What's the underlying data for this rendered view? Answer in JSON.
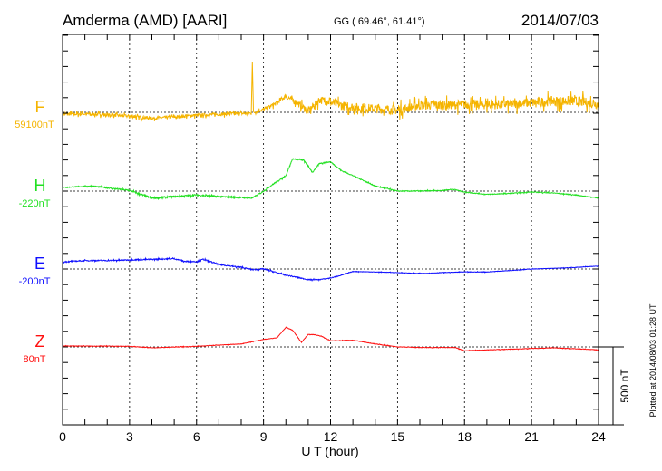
{
  "header": {
    "station": "Amderma (AMD)  [AARI]",
    "coords": "GG ( 69.46°,  61.41°)",
    "date": "2014/07/03"
  },
  "footer": {
    "xlabel": "U T (hour)",
    "plotted": "Plotted at 2014/08/03 01:28 UT",
    "scale_label": "500 nT"
  },
  "colors": {
    "F": "#f5b400",
    "H": "#22e022",
    "E": "#1010ff",
    "Z": "#ff1010",
    "axis": "#000000"
  },
  "chart_data": {
    "type": "line",
    "title": "Amderma (AMD)  [AARI]",
    "xlabel": "U T (hour)",
    "xlim": [
      0,
      24
    ],
    "xticks": [
      "0",
      "3",
      "6",
      "9",
      "12",
      "15",
      "18",
      "21",
      "24"
    ],
    "scale_nT": 500,
    "grid": true,
    "series": [
      {
        "name": "F",
        "baseline_label": "59100nT",
        "noise_nT": [
          [
            0,
            14
          ],
          [
            9,
            14
          ],
          [
            12,
            40
          ],
          [
            24,
            45
          ]
        ],
        "points": [
          [
            0,
            -12
          ],
          [
            1,
            -10
          ],
          [
            2,
            -16
          ],
          [
            3,
            -25
          ],
          [
            4,
            -39
          ],
          [
            5,
            -30
          ],
          [
            6,
            -19
          ],
          [
            7,
            -12
          ],
          [
            8,
            -8
          ],
          [
            8.45,
            -5
          ],
          [
            8.5,
            324
          ],
          [
            8.55,
            -2
          ],
          [
            9,
            19
          ],
          [
            9.5,
            52
          ],
          [
            10,
            105
          ],
          [
            10.5,
            60
          ],
          [
            11,
            8
          ],
          [
            11.5,
            81
          ],
          [
            12,
            66
          ],
          [
            12.5,
            43
          ],
          [
            13,
            33
          ],
          [
            14,
            23
          ],
          [
            15,
            14
          ],
          [
            16,
            45
          ],
          [
            17,
            45
          ],
          [
            18,
            52
          ],
          [
            19,
            48
          ],
          [
            20,
            52
          ],
          [
            21,
            62
          ],
          [
            22,
            72
          ],
          [
            23,
            72
          ],
          [
            24,
            52
          ]
        ]
      },
      {
        "name": "H",
        "baseline_label": "-220nT",
        "noise_nT": [
          [
            0,
            3
          ],
          [
            4,
            8
          ],
          [
            9,
            6
          ],
          [
            12,
            4
          ],
          [
            24,
            3
          ]
        ],
        "points": [
          [
            0,
            23
          ],
          [
            1.3,
            33
          ],
          [
            3,
            4
          ],
          [
            4,
            -45
          ],
          [
            5,
            -35
          ],
          [
            6,
            -25
          ],
          [
            7,
            -35
          ],
          [
            8.5,
            -45
          ],
          [
            9,
            0
          ],
          [
            9.5,
            52
          ],
          [
            10,
            100
          ],
          [
            10.3,
            207
          ],
          [
            10.8,
            198
          ],
          [
            11.2,
            120
          ],
          [
            11.5,
            178
          ],
          [
            12,
            188
          ],
          [
            12.5,
            130
          ],
          [
            13,
            100
          ],
          [
            14,
            33
          ],
          [
            15,
            0
          ],
          [
            16,
            0
          ],
          [
            17,
            4
          ],
          [
            17.5,
            12
          ],
          [
            18,
            -6
          ],
          [
            19,
            -21
          ],
          [
            20,
            -15
          ],
          [
            21,
            -6
          ],
          [
            22,
            -12
          ],
          [
            23,
            -25
          ],
          [
            24,
            -45
          ]
        ]
      },
      {
        "name": "E",
        "baseline_label": "-200nT",
        "noise_nT": [
          [
            0,
            4
          ],
          [
            9,
            6
          ],
          [
            13,
            2
          ],
          [
            24,
            2
          ]
        ],
        "points": [
          [
            0,
            45
          ],
          [
            1,
            54
          ],
          [
            2,
            54
          ],
          [
            3,
            58
          ],
          [
            4,
            62
          ],
          [
            5,
            66
          ],
          [
            5.5,
            48
          ],
          [
            6,
            48
          ],
          [
            6.3,
            62
          ],
          [
            7,
            29
          ],
          [
            8,
            10
          ],
          [
            8.5,
            -4
          ],
          [
            9,
            0
          ],
          [
            10,
            -39
          ],
          [
            11,
            -68
          ],
          [
            11.5,
            -68
          ],
          [
            12,
            -58
          ],
          [
            12.5,
            -39
          ],
          [
            13,
            -16
          ],
          [
            14,
            -19
          ],
          [
            15,
            -23
          ],
          [
            16,
            -29
          ],
          [
            17,
            -23
          ],
          [
            18,
            -19
          ],
          [
            19,
            -19
          ],
          [
            20,
            -10
          ],
          [
            21,
            0
          ],
          [
            22,
            4
          ],
          [
            23,
            10
          ],
          [
            24,
            19
          ]
        ]
      },
      {
        "name": "Z",
        "baseline_label": "80nT",
        "noise_nT": [
          [
            0,
            2
          ],
          [
            24,
            2
          ]
        ],
        "points": [
          [
            0,
            6
          ],
          [
            3,
            4
          ],
          [
            4,
            -6
          ],
          [
            6,
            4
          ],
          [
            8,
            19
          ],
          [
            9,
            48
          ],
          [
            9.6,
            58
          ],
          [
            10,
            126
          ],
          [
            10.3,
            107
          ],
          [
            10.7,
            29
          ],
          [
            11,
            81
          ],
          [
            11.3,
            78
          ],
          [
            11.6,
            68
          ],
          [
            12,
            39
          ],
          [
            13,
            43
          ],
          [
            14,
            19
          ],
          [
            15,
            0
          ],
          [
            16,
            -4
          ],
          [
            17,
            -4
          ],
          [
            17.6,
            -4
          ],
          [
            18,
            -25
          ],
          [
            19,
            -19
          ],
          [
            20,
            -15
          ],
          [
            21,
            -10
          ],
          [
            22,
            -6
          ],
          [
            23,
            -12
          ],
          [
            24,
            -19
          ]
        ]
      }
    ]
  }
}
